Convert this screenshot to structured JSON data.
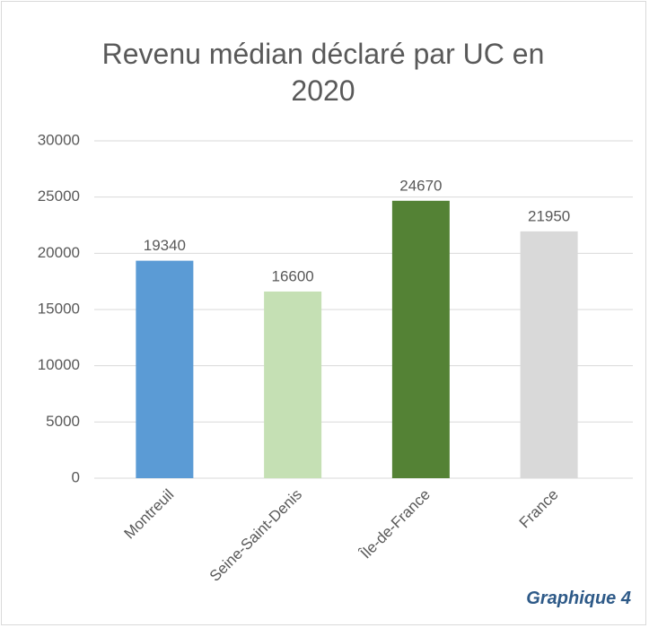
{
  "chart_data": {
    "type": "bar",
    "title": "Revenu médian déclaré par UC en 2020",
    "categories": [
      "Montreuil",
      "Seine-Saint-Denis",
      "Île-de-France",
      "France"
    ],
    "values": [
      19340,
      16600,
      24670,
      21950
    ],
    "colors": [
      "#5b9bd5",
      "#c5e0b4",
      "#548235",
      "#d9d9d9"
    ],
    "ylim": [
      0,
      30000
    ],
    "yticks": [
      0,
      5000,
      10000,
      15000,
      20000,
      25000,
      30000
    ],
    "grid": true,
    "annotation": "Graphique 4"
  }
}
